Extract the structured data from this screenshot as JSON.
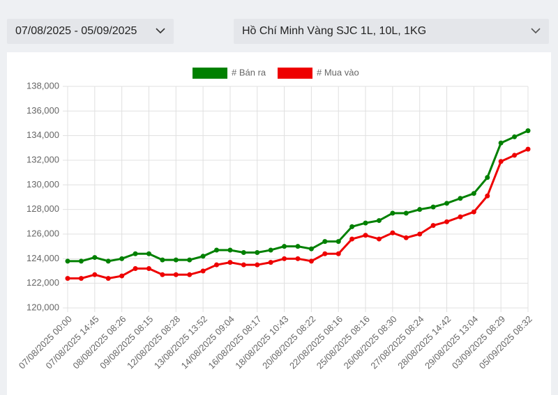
{
  "filters": {
    "date_range": "07/08/2025 - 05/09/2025",
    "product": "Hồ Chí Minh Vàng SJC 1L, 10L, 1KG"
  },
  "chart_data": {
    "type": "line",
    "categories": [
      "07/08/2025 00:00",
      null,
      "07/08/2025 14:45",
      null,
      "08/08/2025 08:26",
      null,
      "09/08/2025 08:15",
      null,
      "12/08/2025 08:28",
      null,
      "13/08/2025 13:52",
      null,
      "14/08/2025 09:04",
      null,
      "16/08/2025 08:17",
      null,
      "18/08/2025 10:43",
      null,
      "20/08/2025 08:22",
      null,
      "22/08/2025 08:16",
      null,
      "25/08/2025 08:16",
      null,
      "26/08/2025 08:30",
      null,
      "27/08/2025 08:24",
      null,
      "28/08/2025 14:42",
      null,
      "29/08/2025 13:04",
      null,
      "03/09/2025 08:29",
      null,
      "05/09/2025 08:32"
    ],
    "series": [
      {
        "name": "# Bán ra",
        "color": "#008000",
        "values": [
          123800,
          123800,
          124100,
          123800,
          124000,
          124400,
          124400,
          123900,
          123900,
          123900,
          124200,
          124700,
          124700,
          124500,
          124500,
          124700,
          125000,
          125000,
          124800,
          125400,
          125400,
          126600,
          126900,
          127100,
          127700,
          127700,
          128000,
          128200,
          128500,
          128900,
          129300,
          130600,
          133400,
          133900,
          134400
        ]
      },
      {
        "name": "# Mua vào",
        "color": "#ee0000",
        "values": [
          122400,
          122400,
          122700,
          122400,
          122600,
          123200,
          123200,
          122700,
          122700,
          122700,
          123000,
          123500,
          123700,
          123500,
          123500,
          123700,
          124000,
          124000,
          123800,
          124400,
          124400,
          125600,
          125900,
          125600,
          126100,
          125700,
          126000,
          126700,
          127000,
          127400,
          127800,
          129100,
          131900,
          132400,
          132900
        ]
      }
    ],
    "ylim": [
      120000,
      138000
    ],
    "yticks": [
      {
        "value": 120000,
        "label": "120,000"
      },
      {
        "value": 122000,
        "label": "122,000"
      },
      {
        "value": 124000,
        "label": "124,000"
      },
      {
        "value": 126000,
        "label": "126,000"
      },
      {
        "value": 128000,
        "label": "128,000"
      },
      {
        "value": 130000,
        "label": "130,000"
      },
      {
        "value": 132000,
        "label": "132,000"
      },
      {
        "value": 134000,
        "label": "134,000"
      },
      {
        "value": 136000,
        "label": "136,000"
      },
      {
        "value": 138000,
        "label": "138,000"
      }
    ],
    "grid": true,
    "legend": "top"
  }
}
